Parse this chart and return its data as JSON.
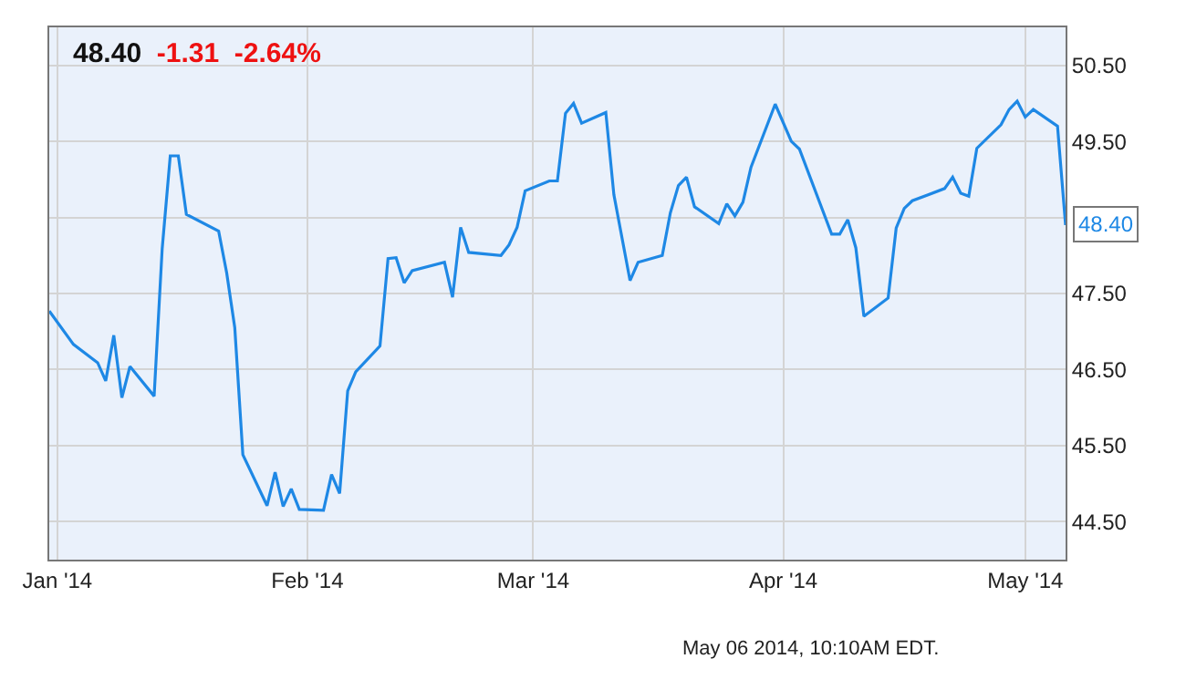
{
  "chart_data": {
    "type": "line",
    "title": "48.40",
    "subtitle": "-1.31  -2.64%",
    "x": [
      "2013-12-31",
      "2014-01-03",
      "2014-01-06",
      "2014-01-07",
      "2014-01-08",
      "2014-01-09",
      "2014-01-10",
      "2014-01-13",
      "2014-01-14",
      "2014-01-15",
      "2014-01-16",
      "2014-01-17",
      "2014-01-21",
      "2014-01-22",
      "2014-01-23",
      "2014-01-24",
      "2014-01-27",
      "2014-01-28",
      "2014-01-29",
      "2014-01-30",
      "2014-01-31",
      "2014-02-03",
      "2014-02-04",
      "2014-02-05",
      "2014-02-06",
      "2014-02-07",
      "2014-02-10",
      "2014-02-11",
      "2014-02-12",
      "2014-02-13",
      "2014-02-14",
      "2014-02-18",
      "2014-02-19",
      "2014-02-20",
      "2014-02-21",
      "2014-02-25",
      "2014-02-26",
      "2014-02-27",
      "2014-02-28",
      "2014-03-03",
      "2014-03-04",
      "2014-03-05",
      "2014-03-06",
      "2014-03-07",
      "2014-03-10",
      "2014-03-11",
      "2014-03-13",
      "2014-03-14",
      "2014-03-17",
      "2014-03-18",
      "2014-03-19",
      "2014-03-20",
      "2014-03-21",
      "2014-03-24",
      "2014-03-25",
      "2014-03-26",
      "2014-03-27",
      "2014-03-28",
      "2014-03-31",
      "2014-04-02",
      "2014-04-03",
      "2014-04-07",
      "2014-04-08",
      "2014-04-09",
      "2014-04-10",
      "2014-04-11",
      "2014-04-14",
      "2014-04-15",
      "2014-04-16",
      "2014-04-17",
      "2014-04-21",
      "2014-04-22",
      "2014-04-23",
      "2014-04-24",
      "2014-04-25",
      "2014-04-28",
      "2014-04-29",
      "2014-04-30",
      "2014-05-01",
      "2014-05-02",
      "2014-05-05",
      "2014-05-06"
    ],
    "series": [
      {
        "color": "#1e88e5",
        "values": [
          47.27,
          46.83,
          46.59,
          46.35,
          46.95,
          46.13,
          46.54,
          46.15,
          48.09,
          49.31,
          49.31,
          48.54,
          48.32,
          47.77,
          47.05,
          45.38,
          44.71,
          45.15,
          44.7,
          44.93,
          44.66,
          44.65,
          45.12,
          44.87,
          46.22,
          46.47,
          46.81,
          47.96,
          47.97,
          47.64,
          47.8,
          47.91,
          47.45,
          48.37,
          48.04,
          48.0,
          48.14,
          48.37,
          48.85,
          48.98,
          48.98,
          49.87,
          50.0,
          49.74,
          49.88,
          48.8,
          47.67,
          47.91,
          48.0,
          48.56,
          48.92,
          49.03,
          48.64,
          48.42,
          48.68,
          48.52,
          48.7,
          49.16,
          49.99,
          49.5,
          49.4,
          48.28,
          48.28,
          48.47,
          48.1,
          47.2,
          47.44,
          48.36,
          48.62,
          48.72,
          48.88,
          49.03,
          48.82,
          48.78,
          49.41,
          49.72,
          49.92,
          50.03,
          49.82,
          49.92,
          49.7,
          48.4
        ]
      }
    ],
    "xlim": [
      "2013-12-31",
      "2014-05-06"
    ],
    "xticks": [
      {
        "value": "2014-01-01",
        "label": "Jan '14"
      },
      {
        "value": "2014-02-01",
        "label": "Feb '14"
      },
      {
        "value": "2014-03-01",
        "label": "Mar '14"
      },
      {
        "value": "2014-04-01",
        "label": "Apr '14"
      },
      {
        "value": "2014-05-01",
        "label": "May '14"
      }
    ],
    "ylim": [
      44.0,
      51.0
    ],
    "yticks": [
      {
        "value": 44.5,
        "label": "44.50"
      },
      {
        "value": 45.5,
        "label": "45.50"
      },
      {
        "value": 46.5,
        "label": "46.50"
      },
      {
        "value": 47.5,
        "label": "47.50"
      },
      {
        "value": 48.5,
        "label": null
      },
      {
        "value": 49.5,
        "label": "49.50"
      },
      {
        "value": 50.5,
        "label": "50.50"
      }
    ],
    "grid": true,
    "marker": "none",
    "line_style": "solid",
    "annotations": [
      {
        "text": "48.40",
        "x": "2014-05-06",
        "y": 48.4
      },
      "May 06 2014, 10:10AM EDT."
    ]
  }
}
